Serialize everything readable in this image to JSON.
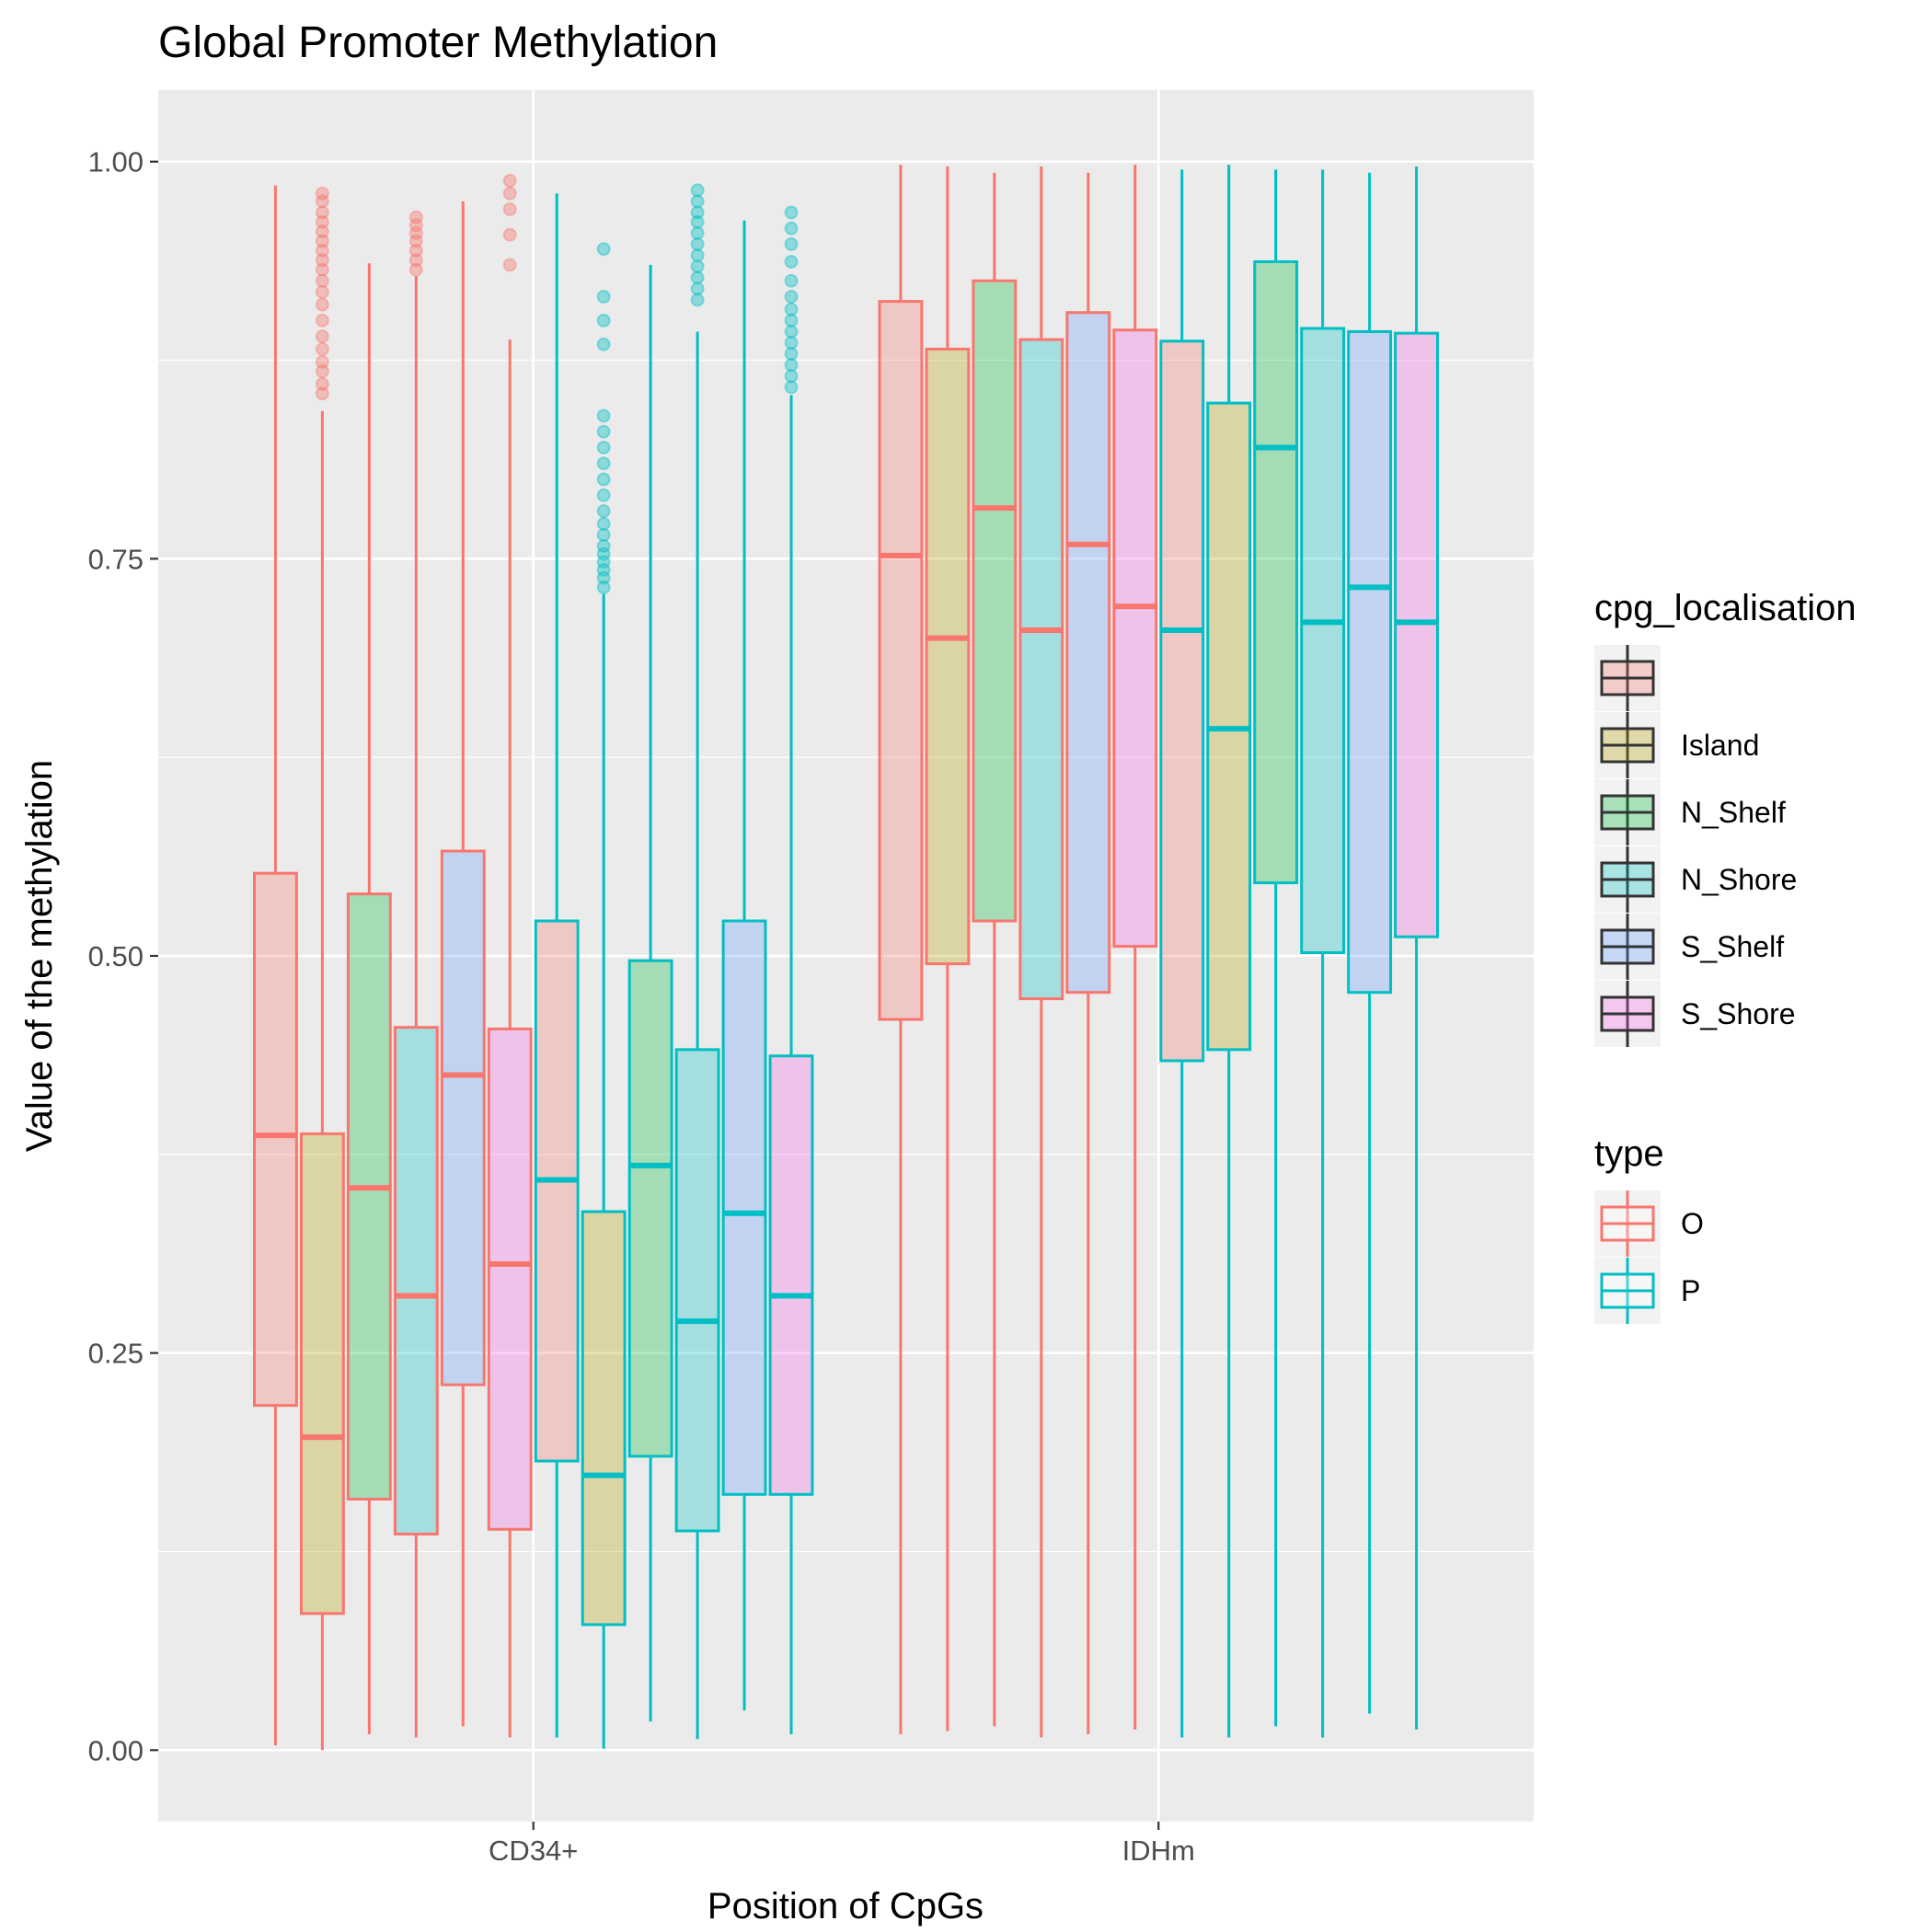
{
  "chart_data": {
    "type": "boxplot",
    "title": "Global Promoter Methylation",
    "xlabel": "Position of CpGs",
    "ylabel": "Value of the methylation",
    "ylim": [
      -0.045,
      1.045
    ],
    "yticks": [
      "0.00",
      "0.25",
      "0.50",
      "0.75",
      "1.00"
    ],
    "ytick_values": [
      0,
      0.25,
      0.5,
      0.75,
      1.0
    ],
    "categories": [
      "CD34+",
      "IDHm"
    ],
    "grid": true,
    "panel_background": "#ebebeb",
    "legend_placement": "right",
    "legends": [
      {
        "title": "cpg_localisation",
        "entries": [
          {
            "label": "",
            "fill": "#f8766d"
          },
          {
            "label": "Island",
            "fill": "#b79f00"
          },
          {
            "label": "N_Shelf",
            "fill": "#00ba38"
          },
          {
            "label": "N_Shore",
            "fill": "#00bfc4"
          },
          {
            "label": "S_Shelf",
            "fill": "#619cff"
          },
          {
            "label": "S_Shore",
            "fill": "#f564e3"
          }
        ]
      },
      {
        "title": "type",
        "entries": [
          {
            "label": "O",
            "color": "#f8766d"
          },
          {
            "label": "P",
            "color": "#00bfc4"
          }
        ]
      }
    ],
    "type_colors": {
      "O": "#f8766d",
      "P": "#00bfc4"
    },
    "cpg_fills": {
      "": "#f8766d",
      "Island": "#b79f00",
      "N_Shelf": "#00ba38",
      "N_Shore": "#00bfc4",
      "S_Shelf": "#619cff",
      "S_Shore": "#f564e3"
    },
    "series": [
      {
        "category": "CD34+",
        "type": "O",
        "cpg_localisation": "",
        "min": 0.003,
        "q1": 0.217,
        "median": 0.387,
        "q3": 0.552,
        "max": 0.985,
        "outliers": []
      },
      {
        "category": "CD34+",
        "type": "O",
        "cpg_localisation": "Island",
        "min": 0.0,
        "q1": 0.086,
        "median": 0.197,
        "q3": 0.388,
        "max": 0.843,
        "outliers": [
          0.854,
          0.86,
          0.868,
          0.874,
          0.882,
          0.89,
          0.9,
          0.91,
          0.918,
          0.925,
          0.932,
          0.938,
          0.944,
          0.95,
          0.956,
          0.962,
          0.968,
          0.975,
          0.98
        ]
      },
      {
        "category": "CD34+",
        "type": "O",
        "cpg_localisation": "N_Shelf",
        "min": 0.01,
        "q1": 0.158,
        "median": 0.354,
        "q3": 0.539,
        "max": 0.936,
        "outliers": []
      },
      {
        "category": "CD34+",
        "type": "O",
        "cpg_localisation": "N_Shore",
        "min": 0.008,
        "q1": 0.136,
        "median": 0.286,
        "q3": 0.455,
        "max": 0.928,
        "outliers": [
          0.932,
          0.938,
          0.944,
          0.95,
          0.955,
          0.96,
          0.965
        ]
      },
      {
        "category": "CD34+",
        "type": "O",
        "cpg_localisation": "S_Shelf",
        "min": 0.015,
        "q1": 0.23,
        "median": 0.425,
        "q3": 0.566,
        "max": 0.975,
        "outliers": []
      },
      {
        "category": "CD34+",
        "type": "O",
        "cpg_localisation": "S_Shore",
        "min": 0.008,
        "q1": 0.139,
        "median": 0.306,
        "q3": 0.454,
        "max": 0.888,
        "outliers": [
          0.935,
          0.954,
          0.97,
          0.98,
          0.988
        ]
      },
      {
        "category": "CD34+",
        "type": "P",
        "cpg_localisation": "",
        "min": 0.008,
        "q1": 0.182,
        "median": 0.359,
        "q3": 0.522,
        "max": 0.98,
        "outliers": []
      },
      {
        "category": "CD34+",
        "type": "P",
        "cpg_localisation": "Island",
        "min": 0.001,
        "q1": 0.079,
        "median": 0.173,
        "q3": 0.339,
        "max": 0.728,
        "outliers": [
          0.732,
          0.738,
          0.743,
          0.748,
          0.753,
          0.758,
          0.765,
          0.772,
          0.78,
          0.79,
          0.8,
          0.81,
          0.82,
          0.83,
          0.84,
          0.885,
          0.9,
          0.915,
          0.945
        ]
      },
      {
        "category": "CD34+",
        "type": "P",
        "cpg_localisation": "N_Shelf",
        "min": 0.018,
        "q1": 0.185,
        "median": 0.368,
        "q3": 0.497,
        "max": 0.935,
        "outliers": []
      },
      {
        "category": "CD34+",
        "type": "P",
        "cpg_localisation": "N_Shore",
        "min": 0.007,
        "q1": 0.138,
        "median": 0.27,
        "q3": 0.441,
        "max": 0.893,
        "outliers": [
          0.913,
          0.92,
          0.927,
          0.934,
          0.941,
          0.948,
          0.955,
          0.962,
          0.968,
          0.975,
          0.982
        ]
      },
      {
        "category": "CD34+",
        "type": "P",
        "cpg_localisation": "S_Shelf",
        "min": 0.025,
        "q1": 0.161,
        "median": 0.338,
        "q3": 0.522,
        "max": 0.963,
        "outliers": []
      },
      {
        "category": "CD34+",
        "type": "P",
        "cpg_localisation": "S_Shore",
        "min": 0.01,
        "q1": 0.161,
        "median": 0.286,
        "q3": 0.437,
        "max": 0.853,
        "outliers": [
          0.858,
          0.865,
          0.872,
          0.879,
          0.886,
          0.893,
          0.9,
          0.907,
          0.915,
          0.925,
          0.937,
          0.948,
          0.958,
          0.968
        ]
      },
      {
        "category": "IDHm",
        "type": "O",
        "cpg_localisation": "",
        "min": 0.01,
        "q1": 0.46,
        "median": 0.752,
        "q3": 0.912,
        "max": 0.998,
        "outliers": []
      },
      {
        "category": "IDHm",
        "type": "O",
        "cpg_localisation": "Island",
        "min": 0.012,
        "q1": 0.495,
        "median": 0.7,
        "q3": 0.882,
        "max": 0.997,
        "outliers": []
      },
      {
        "category": "IDHm",
        "type": "O",
        "cpg_localisation": "N_Shelf",
        "min": 0.015,
        "q1": 0.522,
        "median": 0.782,
        "q3": 0.925,
        "max": 0.993,
        "outliers": []
      },
      {
        "category": "IDHm",
        "type": "O",
        "cpg_localisation": "N_Shore",
        "min": 0.008,
        "q1": 0.473,
        "median": 0.705,
        "q3": 0.888,
        "max": 0.997,
        "outliers": []
      },
      {
        "category": "IDHm",
        "type": "O",
        "cpg_localisation": "S_Shelf",
        "min": 0.01,
        "q1": 0.477,
        "median": 0.759,
        "q3": 0.905,
        "max": 0.993,
        "outliers": []
      },
      {
        "category": "IDHm",
        "type": "O",
        "cpg_localisation": "S_Shore",
        "min": 0.013,
        "q1": 0.506,
        "median": 0.72,
        "q3": 0.894,
        "max": 0.998,
        "outliers": []
      },
      {
        "category": "IDHm",
        "type": "P",
        "cpg_localisation": "",
        "min": 0.008,
        "q1": 0.434,
        "median": 0.705,
        "q3": 0.887,
        "max": 0.995,
        "outliers": []
      },
      {
        "category": "IDHm",
        "type": "P",
        "cpg_localisation": "Island",
        "min": 0.008,
        "q1": 0.441,
        "median": 0.643,
        "q3": 0.848,
        "max": 0.998,
        "outliers": []
      },
      {
        "category": "IDHm",
        "type": "P",
        "cpg_localisation": "N_Shelf",
        "min": 0.015,
        "q1": 0.546,
        "median": 0.82,
        "q3": 0.937,
        "max": 0.995,
        "outliers": []
      },
      {
        "category": "IDHm",
        "type": "P",
        "cpg_localisation": "N_Shore",
        "min": 0.008,
        "q1": 0.502,
        "median": 0.71,
        "q3": 0.895,
        "max": 0.995,
        "outliers": []
      },
      {
        "category": "IDHm",
        "type": "P",
        "cpg_localisation": "S_Shelf",
        "min": 0.023,
        "q1": 0.477,
        "median": 0.732,
        "q3": 0.893,
        "max": 0.993,
        "outliers": []
      },
      {
        "category": "IDHm",
        "type": "P",
        "cpg_localisation": "S_Shore",
        "min": 0.013,
        "q1": 0.512,
        "median": 0.71,
        "q3": 0.892,
        "max": 0.997,
        "outliers": []
      }
    ]
  }
}
